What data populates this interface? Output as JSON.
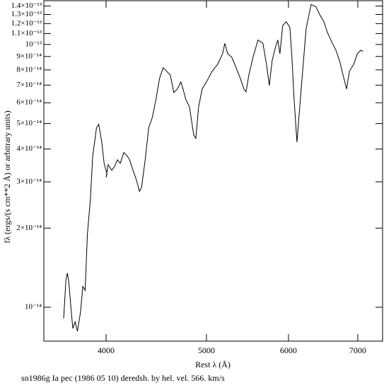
{
  "chart_data": {
    "type": "line",
    "title": "sn1986g Ia pec (1986 05 10) deredsh. by hel. vel.   566. km/s",
    "x_label": "Rest λ (Å)",
    "y_label": "fλ (ergs/(s cm**2 Å) or arbitrary units)",
    "x_log": true,
    "y_log": true,
    "color": "#000000",
    "xlim": [
      3483,
      7397
    ],
    "ylim": [
      7.43e-15,
      1.467e-13
    ],
    "xticks": [
      4000,
      5000,
      6000,
      7000
    ],
    "yticks": [
      {
        "value": 1e-14,
        "label": "10⁻¹⁴"
      },
      {
        "value": 2e-14,
        "label": "2×10⁻¹⁴"
      },
      {
        "value": 3e-14,
        "label": "3×10⁻¹⁴"
      },
      {
        "value": 4e-14,
        "label": "4×10⁻¹⁴"
      },
      {
        "value": 5e-14,
        "label": "5×10⁻¹⁴"
      },
      {
        "value": 6e-14,
        "label": "6×10⁻¹⁴"
      },
      {
        "value": 7e-14,
        "label": "7×10⁻¹⁴"
      },
      {
        "value": 8e-14,
        "label": "8×10⁻¹⁴"
      },
      {
        "value": 9e-14,
        "label": "9×10⁻¹⁴"
      },
      {
        "value": 1e-13,
        "label": "10⁻¹³"
      },
      {
        "value": 1.1e-13,
        "label": "1.1×10⁻¹³"
      },
      {
        "value": 1.2e-13,
        "label": "1.2×10⁻¹³"
      },
      {
        "value": 1.3e-13,
        "label": "1.3×10⁻¹³"
      },
      {
        "value": 1.4e-13,
        "label": "1.4×10⁻¹³"
      }
    ],
    "x": [
      3640,
      3658,
      3670,
      3683,
      3702,
      3715,
      3734,
      3753,
      3779,
      3798,
      3818,
      3837,
      3863,
      3883,
      3916,
      3935,
      3962,
      3982,
      4008,
      4000,
      4019,
      4050,
      4076,
      4102,
      4128,
      4161,
      4194,
      4214,
      4247,
      4281,
      4308,
      4328,
      4363,
      4398,
      4434,
      4469,
      4505,
      4541,
      4577,
      4614,
      4650,
      4687,
      4724,
      4746,
      4776,
      4814,
      4837,
      4860,
      4883,
      4914,
      4953,
      5000,
      5063,
      5127,
      5183,
      5208,
      5241,
      5290,
      5341,
      5391,
      5434,
      5460,
      5494,
      5546,
      5607,
      5669,
      5714,
      5750,
      5786,
      5831,
      5859,
      5887,
      5924,
      5971,
      6019,
      6047,
      6076,
      6114,
      6153,
      6192,
      6241,
      6310,
      6380,
      6431,
      6492,
      6543,
      6616,
      6668,
      6721,
      6774,
      6828,
      6871,
      6937,
      6993,
      7048,
      7081
    ],
    "values": [
      9.06e-15,
      1.27e-14,
      1.35e-14,
      1.23e-14,
      9.6e-15,
      8.3e-15,
      8.8e-15,
      8.1e-15,
      9.6e-15,
      1.2e-14,
      1.16e-14,
      1.9e-14,
      2.59e-14,
      3.76e-14,
      4.82e-14,
      4.97e-14,
      4.25e-14,
      3.53e-14,
      3.22e-14,
      3.12e-14,
      3.49e-14,
      3.32e-14,
      3.43e-14,
      3.64e-14,
      3.53e-14,
      3.88e-14,
      3.76e-14,
      3.64e-14,
      3.32e-14,
      3.03e-14,
      2.76e-14,
      2.85e-14,
      3.64e-14,
      4.82e-14,
      5.29e-14,
      6.17e-14,
      7.43e-14,
      8.15e-14,
      7.9e-14,
      7.65e-14,
      6.56e-14,
      6.77e-14,
      7.2e-14,
      6.77e-14,
      6.17e-14,
      5.8e-14,
      5.12e-14,
      4.53e-14,
      4.39e-14,
      5.8e-14,
      6.77e-14,
      7.2e-14,
      7.9e-14,
      8.41e-14,
      9.22e-14,
      1.01e-13,
      9.22e-14,
      8.94e-14,
      8.15e-14,
      7.43e-14,
      6.77e-14,
      6.6e-14,
      7.66e-14,
      8.94e-14,
      1.04e-13,
      1.01e-13,
      8.41e-14,
      6.98e-14,
      8.67e-14,
      9.81e-14,
      1.04e-13,
      9.22e-14,
      1.18e-13,
      1.22e-13,
      1.16e-13,
      8.94e-14,
      6.17e-14,
      4.25e-14,
      5.8e-14,
      7.9e-14,
      1.15e-13,
      1.42e-13,
      1.39e-13,
      1.3e-13,
      1.22e-13,
      1.11e-13,
      1.01e-13,
      9.51e-14,
      8.67e-14,
      7.66e-14,
      6.77e-14,
      7.9e-14,
      8.41e-14,
      9.22e-14,
      9.51e-14,
      9.4e-14
    ]
  }
}
